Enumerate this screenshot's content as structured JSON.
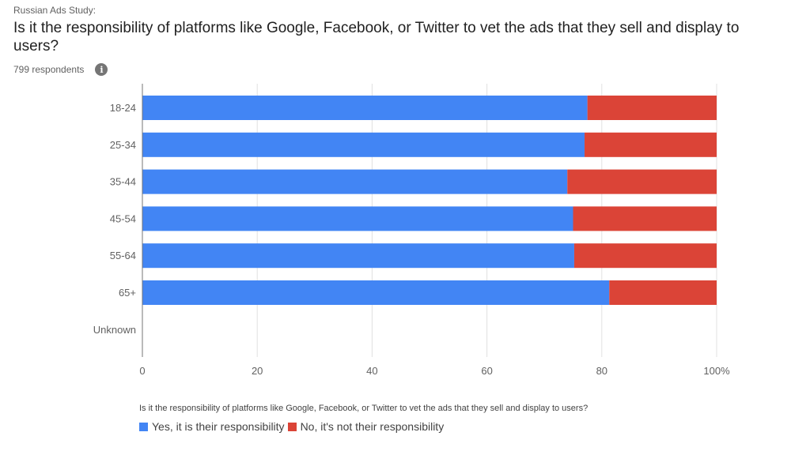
{
  "header": {
    "supertitle": "Russian Ads Study:",
    "title": "Is it the responsibility of platforms like Google, Facebook, or Twitter to vet the ads that they sell and display to users?",
    "respondents": "799 respondents",
    "info_icon": "info-icon"
  },
  "chart_data": {
    "type": "bar",
    "orientation": "horizontal",
    "stacked": true,
    "percent": true,
    "categories": [
      "18-24",
      "25-34",
      "35-44",
      "45-54",
      "55-64",
      "65+",
      "Unknown"
    ],
    "series": [
      {
        "name": "Yes, it is their responsibility",
        "color": "#4285f4",
        "values": [
          77.5,
          77,
          74,
          75,
          75.2,
          81.3,
          null
        ]
      },
      {
        "name": "No, it's not their responsibility",
        "color": "#db4437",
        "values": [
          22.5,
          23,
          26,
          25,
          24.8,
          18.7,
          null
        ]
      }
    ],
    "x_ticks": [
      "0",
      "20",
      "40",
      "60",
      "80",
      "100%"
    ],
    "xlim": [
      0,
      100
    ],
    "grid": true,
    "legend_title": "Is it the responsibility of platforms like Google, Facebook, or Twitter to vet the ads that they sell and display to users?",
    "legend_position": "bottom"
  }
}
